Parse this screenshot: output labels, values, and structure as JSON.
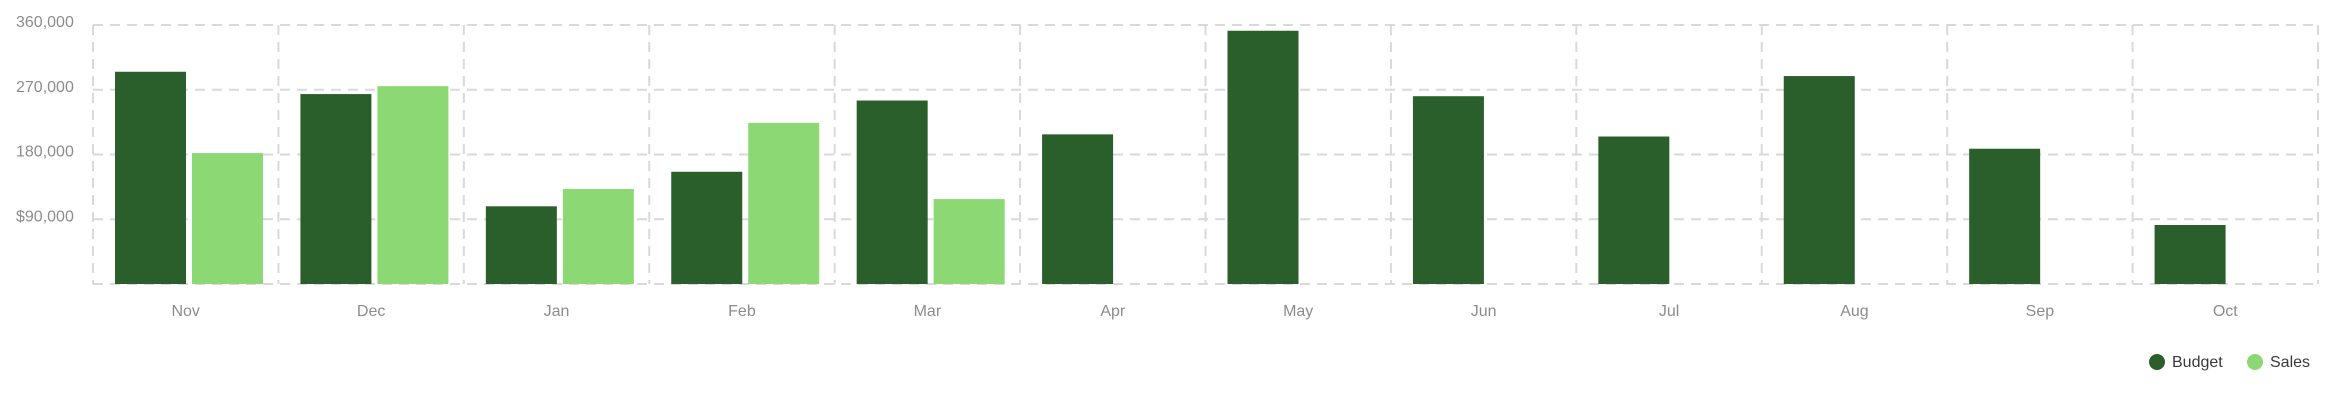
{
  "chart_data": {
    "type": "bar",
    "categories": [
      "Nov",
      "Dec",
      "Jan",
      "Feb",
      "Mar",
      "Apr",
      "May",
      "Jun",
      "Jul",
      "Aug",
      "Sep",
      "Oct"
    ],
    "series": [
      {
        "name": "Budget",
        "color": "#2a5e2a",
        "values": [
          295000,
          264000,
          108000,
          156000,
          255000,
          208000,
          352000,
          261000,
          205000,
          289000,
          188000,
          82000
        ]
      },
      {
        "name": "Sales",
        "color": "#8cd874",
        "values": [
          182000,
          275000,
          132000,
          224000,
          118000,
          null,
          null,
          null,
          null,
          null,
          null,
          null
        ]
      }
    ],
    "y_ticks": [
      {
        "value": 90000,
        "label": "$90,000"
      },
      {
        "value": 180000,
        "label": "180,000"
      },
      {
        "value": 270000,
        "label": "270,000"
      },
      {
        "value": 360000,
        "label": "360,000"
      }
    ],
    "ylim": [
      0,
      360000
    ],
    "grid": true,
    "legend_position": "bottom-right"
  }
}
